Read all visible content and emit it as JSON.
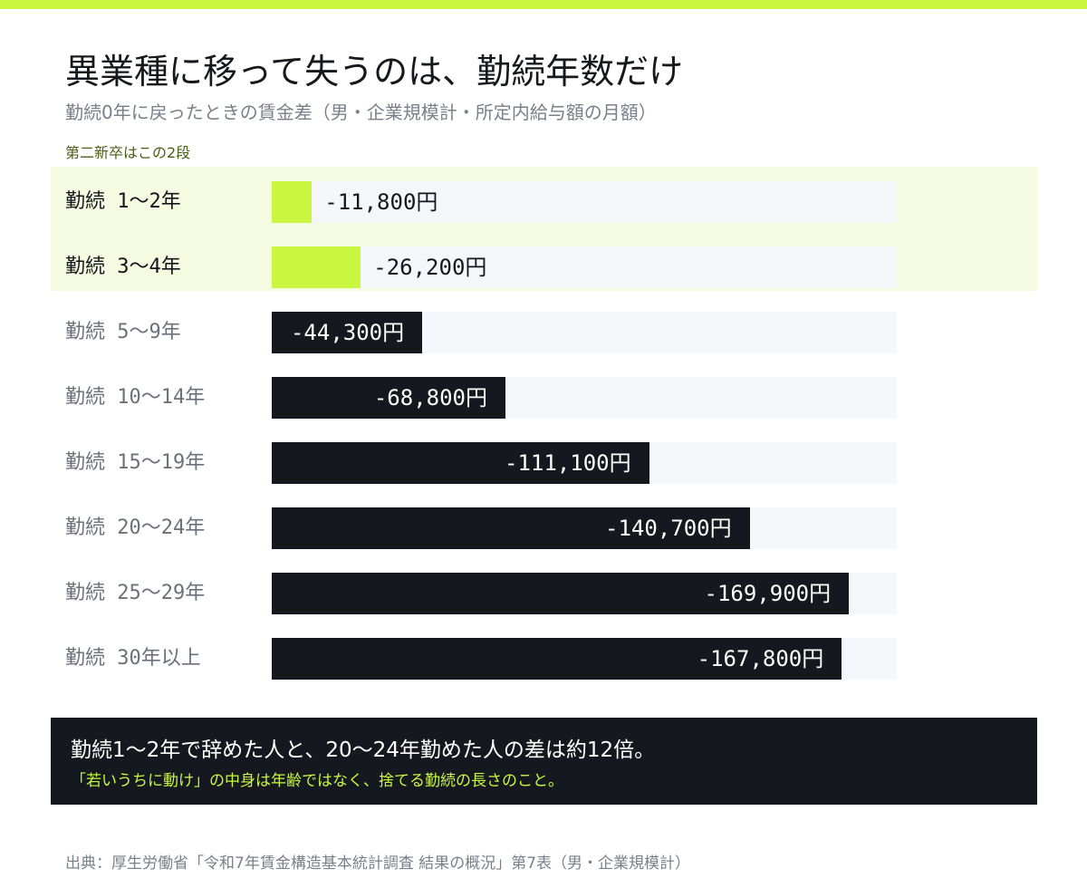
{
  "header": {
    "title": "異業種に移って失うのは、勤続年数だけ",
    "subtitle": "勤続0年に戻ったときの賃金差（男・企業規模計・所定内給与額の月額）",
    "highlight_note": "第二新卒はこの2段"
  },
  "colors": {
    "accent": "#c9f73f",
    "bar_dark": "#16181f",
    "track": "#f4f6f9",
    "highlight_bg": "#f4fbe0"
  },
  "chart_data": {
    "type": "bar",
    "orientation": "horizontal",
    "title": "異業種に移って失うのは、勤続年数だけ",
    "subtitle": "勤続0年に戻ったときの賃金差（男・企業規模計・所定内給与額の月額）",
    "xlim": [
      0,
      184000
    ],
    "categories": [
      "勤続 1〜2年",
      "勤続 3〜4年",
      "勤続 5〜9年",
      "勤続 10〜14年",
      "勤続 15〜19年",
      "勤続 20〜24年",
      "勤続 25〜29年",
      "勤続 30年以上"
    ],
    "values": [
      -11800,
      -26200,
      -44300,
      -68800,
      -111100,
      -140700,
      -169900,
      -167800
    ],
    "labels": [
      "-11,800円",
      "-26,200円",
      "-44,300円",
      "-68,800円",
      "-111,100円",
      "-140,700円",
      "-169,900円",
      "-167,800円"
    ],
    "highlighted": [
      0,
      1
    ]
  },
  "callout": {
    "main": "勤続1〜2年で辞めた人と、20〜24年勤めた人の差は約12倍。",
    "sub": "「若いうちに動け」の中身は年齢ではなく、捨てる勤続の長さのこと。"
  },
  "source": "出典：厚生労働省「令和7年賃金構造基本統計調査 結果の概況」第7表（男・企業規模計）"
}
